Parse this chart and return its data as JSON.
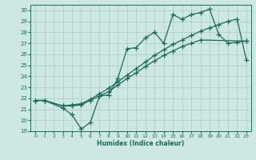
{
  "xlabel": "Humidex (Indice chaleur)",
  "xlim": [
    -0.5,
    23.5
  ],
  "ylim": [
    19,
    30.5
  ],
  "xticks": [
    0,
    1,
    2,
    3,
    4,
    5,
    6,
    7,
    8,
    9,
    10,
    11,
    12,
    13,
    14,
    15,
    16,
    17,
    18,
    19,
    20,
    21,
    22,
    23
  ],
  "yticks": [
    19,
    20,
    21,
    22,
    23,
    24,
    25,
    26,
    27,
    28,
    29,
    30
  ],
  "bg_color": "#cde8e0",
  "line_color": "#1a6b5a",
  "grid_color": "#a8ccc4",
  "line1_x": [
    0,
    1,
    3,
    4,
    5,
    6,
    7,
    8,
    9,
    10,
    11,
    12,
    13,
    14,
    15,
    16,
    17,
    18,
    19,
    20,
    21,
    22,
    23
  ],
  "line1_y": [
    21.8,
    21.8,
    21.1,
    20.5,
    19.2,
    19.8,
    22.2,
    22.3,
    23.8,
    26.5,
    26.6,
    27.5,
    28.0,
    27.0,
    29.6,
    29.2,
    29.6,
    29.8,
    30.1,
    27.8,
    27.0,
    27.1,
    27.2
  ],
  "line2_x": [
    0,
    1,
    3,
    4,
    5,
    6,
    7,
    8,
    9,
    10,
    11,
    12,
    13,
    14,
    15,
    16,
    17,
    18,
    23
  ],
  "line2_y": [
    21.8,
    21.8,
    21.3,
    21.3,
    21.4,
    21.8,
    22.2,
    22.6,
    23.2,
    23.8,
    24.3,
    24.9,
    25.4,
    25.9,
    26.3,
    26.7,
    27.0,
    27.3,
    27.2
  ],
  "line3_x": [
    0,
    1,
    3,
    4,
    5,
    6,
    7,
    8,
    9,
    10,
    11,
    12,
    13,
    14,
    15,
    16,
    17,
    18,
    19,
    20,
    21,
    22,
    23
  ],
  "line3_y": [
    21.8,
    21.8,
    21.3,
    21.4,
    21.5,
    21.9,
    22.4,
    22.9,
    23.5,
    24.1,
    24.7,
    25.3,
    25.9,
    26.4,
    26.9,
    27.3,
    27.7,
    28.1,
    28.4,
    28.7,
    29.0,
    29.2,
    25.5
  ]
}
